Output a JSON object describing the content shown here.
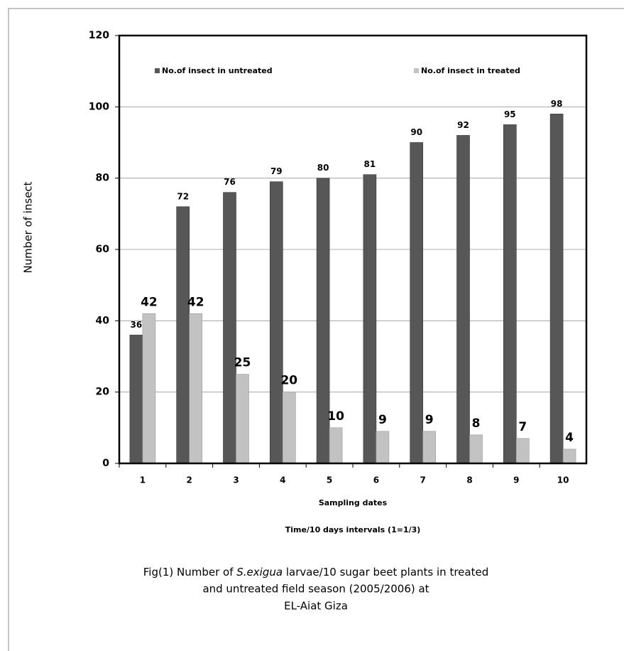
{
  "chart_data": {
    "type": "bar",
    "y_label": "Number of insect",
    "x_label": "Sampling dates",
    "x_sublabel": "Time/10 days intervals (1=1/3)",
    "caption": [
      "Fig(1) Number of ",
      "S.exigua",
      " larvae/10 sugar beet plants in treated",
      "and untreated field season (2005/2006)  at",
      "EL-Aiat Giza"
    ],
    "categories": [
      1,
      2,
      3,
      4,
      5,
      6,
      7,
      8,
      9,
      10
    ],
    "series": [
      {
        "name": "No.of insect in untreated",
        "color": "#575757",
        "values": [
          36,
          72,
          76,
          79,
          80,
          81,
          90,
          92,
          95,
          98
        ]
      },
      {
        "name": "No.of insect in treated",
        "color": "#c2c2c2",
        "values": [
          42,
          42,
          25,
          20,
          10,
          9,
          9,
          8,
          7,
          4
        ]
      }
    ],
    "ylim": [
      0,
      120
    ],
    "yticks": [
      0,
      20,
      40,
      60,
      80,
      100,
      120
    ],
    "grid": true,
    "legend": "top"
  }
}
